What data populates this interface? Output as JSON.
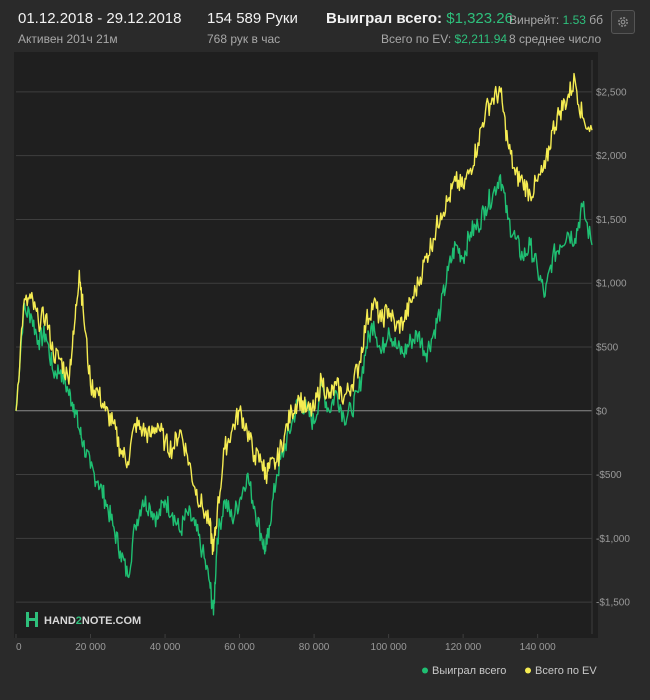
{
  "header": {
    "date_range": "01.12.2018 - 29.12.2018",
    "active_time": "Активен 201ч 21м",
    "hands": "154 589 Руки",
    "hands_per_hour": "768 рук в час",
    "won_total_label": "Выиграл всего:",
    "won_total_value": "$1,323.26",
    "ev_total_label": "Всего по EV:",
    "ev_total_value": "$2,211.94",
    "winrate_label": "Винрейт:",
    "winrate_value": "1.53",
    "winrate_unit": "бб",
    "winrate_sub": "8 среднее число"
  },
  "colors": {
    "background": "#2a2a2a",
    "plot_background": "#1f1f1f",
    "won_series": "#1fbf72",
    "ev_series": "#f5ec52",
    "grid": "#3e3e3e",
    "zero_line": "#8a8a8a",
    "accent_green": "#2ec07c"
  },
  "icons": {
    "settings": "gear-icon",
    "logo": "hand2note-logo-icon"
  },
  "logo": {
    "prefix": "HAND",
    "mid": "2",
    "suffix": "NOTE.COM"
  },
  "chart_data": {
    "type": "line",
    "title": "",
    "xlabel": "",
    "ylabel": "",
    "xlim": [
      0,
      154589
    ],
    "ylim": [
      -1750,
      2750
    ],
    "x_ticks": [
      0,
      20000,
      40000,
      60000,
      80000,
      100000,
      120000,
      140000
    ],
    "x_tick_labels": [
      "0",
      "20 000",
      "40 000",
      "60 000",
      "80 000",
      "100 000",
      "120 000",
      "140 000"
    ],
    "y_ticks": [
      2500,
      2000,
      1500,
      1000,
      500,
      0,
      -500,
      -1000,
      -1500
    ],
    "y_tick_labels": [
      "$2,500",
      "$2,000",
      "$1,500",
      "$1,000",
      "$500",
      "$0",
      "-$500",
      "-$1,000",
      "-$1,500"
    ],
    "legend_position": "bottom-right",
    "grid": true,
    "series": [
      {
        "name": "Выиграл всего",
        "color": "#1fbf72",
        "x": [
          0,
          2000,
          4000,
          6000,
          8000,
          10000,
          12000,
          14000,
          15500,
          17000,
          18000,
          20000,
          22000,
          24000,
          26000,
          28000,
          30000,
          32000,
          34000,
          36000,
          38000,
          40000,
          42000,
          44000,
          46000,
          48000,
          50000,
          52000,
          53000,
          54000,
          56000,
          58000,
          60000,
          62000,
          64000,
          66000,
          67000,
          68000,
          70000,
          72000,
          74000,
          76000,
          78000,
          80000,
          82000,
          84000,
          86000,
          88000,
          90000,
          92000,
          94000,
          96000,
          98000,
          100000,
          102000,
          104000,
          106000,
          108000,
          110000,
          112000,
          114000,
          116000,
          118000,
          120000,
          122000,
          124000,
          126000,
          128000,
          130000,
          132000,
          134000,
          136000,
          138000,
          140000,
          142000,
          144000,
          146000,
          148000,
          150000,
          152000,
          154589
        ],
        "values": [
          0,
          780,
          760,
          550,
          600,
          300,
          320,
          150,
          50,
          -150,
          -250,
          -450,
          -550,
          -700,
          -900,
          -1100,
          -1300,
          -900,
          -700,
          -750,
          -850,
          -700,
          -800,
          -950,
          -800,
          -900,
          -1100,
          -1350,
          -1600,
          -1000,
          -700,
          -850,
          -700,
          -500,
          -750,
          -1000,
          -1100,
          -900,
          -500,
          -300,
          -100,
          100,
          0,
          -100,
          200,
          0,
          150,
          -50,
          0,
          150,
          500,
          700,
          450,
          650,
          500,
          450,
          550,
          600,
          450,
          600,
          800,
          1100,
          1300,
          1200,
          1400,
          1450,
          1600,
          1700,
          1850,
          1500,
          1350,
          1200,
          1300,
          1100,
          900,
          1200,
          1300,
          1400,
          1350,
          1600,
          1300
        ]
      },
      {
        "name": "Всего по EV",
        "color": "#f5ec52",
        "x": [
          0,
          2000,
          4000,
          6000,
          8000,
          10000,
          12000,
          14000,
          15500,
          17000,
          18000,
          20000,
          22000,
          24000,
          26000,
          28000,
          30000,
          32000,
          34000,
          36000,
          38000,
          40000,
          42000,
          44000,
          46000,
          48000,
          50000,
          52000,
          53000,
          54000,
          56000,
          58000,
          60000,
          62000,
          64000,
          66000,
          67000,
          68000,
          70000,
          72000,
          74000,
          76000,
          78000,
          80000,
          82000,
          84000,
          86000,
          88000,
          90000,
          92000,
          94000,
          96000,
          98000,
          100000,
          102000,
          104000,
          106000,
          108000,
          110000,
          112000,
          114000,
          116000,
          118000,
          120000,
          122000,
          124000,
          126000,
          128000,
          130000,
          132000,
          134000,
          136000,
          138000,
          140000,
          142000,
          144000,
          146000,
          148000,
          150000,
          152000,
          154589
        ],
        "values": [
          0,
          820,
          880,
          700,
          750,
          450,
          400,
          250,
          600,
          1100,
          800,
          200,
          150,
          0,
          -100,
          -300,
          -400,
          -100,
          -150,
          -200,
          -100,
          -250,
          -300,
          -150,
          -350,
          -600,
          -750,
          -900,
          -1100,
          -800,
          -300,
          -150,
          0,
          -150,
          -350,
          -400,
          -500,
          -450,
          -400,
          -200,
          0,
          100,
          0,
          0,
          250,
          100,
          200,
          100,
          200,
          350,
          700,
          850,
          700,
          800,
          650,
          700,
          850,
          1000,
          1200,
          1350,
          1550,
          1650,
          1800,
          1750,
          1900,
          2100,
          2350,
          2450,
          2500,
          2100,
          1850,
          1800,
          1700,
          1800,
          1900,
          2200,
          2350,
          2450,
          2600,
          2300,
          2200
        ]
      }
    ]
  }
}
